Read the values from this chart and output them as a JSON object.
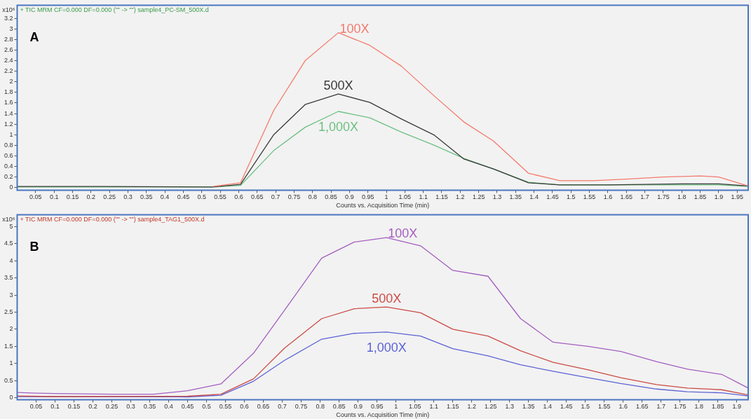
{
  "chart_data": [
    {
      "type": "line",
      "title": "A",
      "subtitle": "+ TIC MRM CF=0.000 DF=0.000 (\"\" -> \"\") sample4_PC-SM_500X.d",
      "xlabel": "Counts vs. Acquisition Time (min)",
      "ylabel": "x10⁶",
      "xlim": [
        0,
        1.98
      ],
      "ylim": [
        -0.05,
        3.45
      ],
      "xticks": [
        0.05,
        0.1,
        0.15,
        0.2,
        0.25,
        0.3,
        0.35,
        0.4,
        0.45,
        0.5,
        0.55,
        0.6,
        0.65,
        0.7,
        0.75,
        0.8,
        0.85,
        0.9,
        0.95,
        1,
        1.05,
        1.1,
        1.15,
        1.2,
        1.25,
        1.3,
        1.35,
        1.4,
        1.45,
        1.5,
        1.55,
        1.6,
        1.65,
        1.7,
        1.75,
        1.8,
        1.85,
        1.9,
        1.95
      ],
      "yticks": [
        0,
        0.2,
        0.4,
        0.6,
        0.8,
        1,
        1.2,
        1.4,
        1.6,
        1.8,
        2,
        2.2,
        2.4,
        2.6,
        2.8,
        3,
        3.2
      ],
      "legend": false,
      "marker": "none",
      "series": [
        {
          "name": "100X",
          "color": "#f47a6c",
          "x": [
            0.53,
            0.605,
            0.695,
            0.78,
            0.87,
            0.955,
            1.04,
            1.13,
            1.21,
            1.29,
            1.385,
            1.47,
            1.56,
            1.65,
            1.75,
            1.85,
            1.9,
            1.98
          ],
          "values": [
            0.02,
            0.09,
            1.46,
            2.4,
            2.93,
            2.69,
            2.3,
            1.73,
            1.24,
            0.88,
            0.27,
            0.13,
            0.13,
            0.16,
            0.2,
            0.22,
            0.2,
            0.03
          ]
        },
        {
          "name": "500X",
          "color": "#3a3a3a",
          "x": [
            0,
            0.22,
            0.53,
            0.605,
            0.695,
            0.78,
            0.87,
            0.955,
            1.04,
            1.13,
            1.21,
            1.29,
            1.385,
            1.47,
            1.6,
            1.8,
            1.9,
            1.98
          ],
          "values": [
            0.02,
            0.02,
            0.01,
            0.06,
            1.0,
            1.57,
            1.77,
            1.61,
            1.3,
            0.99,
            0.54,
            0.35,
            0.09,
            0.05,
            0.05,
            0.07,
            0.07,
            0.03
          ]
        },
        {
          "name": "1,000X",
          "color": "#6cc082",
          "x": [
            0,
            0.22,
            0.53,
            0.605,
            0.695,
            0.78,
            0.87,
            0.955,
            1.04,
            1.13,
            1.21,
            1.29,
            1.385,
            1.47,
            1.6,
            1.8,
            1.9,
            1.98
          ],
          "values": [
            0.01,
            0.01,
            0.01,
            0.04,
            0.7,
            1.14,
            1.44,
            1.32,
            1.05,
            0.8,
            0.55,
            0.35,
            0.1,
            0.05,
            0.05,
            0.05,
            0.05,
            0.02
          ]
        }
      ]
    },
    {
      "type": "line",
      "title": "B",
      "subtitle": "+ TIC MRM CF=0.000 DF=0.000 (\"\" -> \"\") sample4_TAG1_500X.d",
      "xlabel": "Counts vs. Acquisition Time (min)",
      "ylabel": "x10⁶",
      "xlim": [
        0,
        1.93
      ],
      "ylim": [
        -0.06,
        5.35
      ],
      "xticks": [
        0.05,
        0.1,
        0.15,
        0.2,
        0.25,
        0.3,
        0.35,
        0.4,
        0.45,
        0.5,
        0.55,
        0.6,
        0.65,
        0.7,
        0.75,
        0.8,
        0.85,
        0.9,
        0.95,
        1,
        1.05,
        1.1,
        1.15,
        1.2,
        1.25,
        1.3,
        1.35,
        1.4,
        1.45,
        1.5,
        1.55,
        1.6,
        1.65,
        1.7,
        1.75,
        1.8,
        1.85,
        1.9
      ],
      "yticks": [
        0,
        0.5,
        1,
        1.5,
        2,
        2.5,
        3,
        3.5,
        4,
        4.5,
        5
      ],
      "legend": false,
      "marker": "none",
      "series": [
        {
          "name": "100X",
          "color": "#a35fbf",
          "x": [
            0,
            0.05,
            0.1,
            0.25,
            0.36,
            0.45,
            0.538,
            0.624,
            0.706,
            0.804,
            0.89,
            0.975,
            1.065,
            1.15,
            1.243,
            1.329,
            1.415,
            1.508,
            1.594,
            1.688,
            1.77,
            1.86,
            1.93
          ],
          "values": [
            0.15,
            0.13,
            0.12,
            0.1,
            0.1,
            0.2,
            0.4,
            1.3,
            2.56,
            4.08,
            4.55,
            4.68,
            4.44,
            3.72,
            3.55,
            2.31,
            1.62,
            1.5,
            1.35,
            1.05,
            0.83,
            0.68,
            0.28
          ]
        },
        {
          "name": "500X",
          "color": "#cc4b44",
          "x": [
            0,
            0.1,
            0.45,
            0.538,
            0.624,
            0.706,
            0.804,
            0.89,
            0.975,
            1.065,
            1.15,
            1.243,
            1.329,
            1.415,
            1.508,
            1.594,
            1.688,
            1.77,
            1.86,
            1.93
          ],
          "values": [
            0.05,
            0.03,
            0.04,
            0.1,
            0.55,
            1.45,
            2.31,
            2.6,
            2.65,
            2.48,
            2.0,
            1.8,
            1.37,
            1.03,
            0.81,
            0.58,
            0.38,
            0.28,
            0.23,
            0.08
          ]
        },
        {
          "name": "1,000X",
          "color": "#5c62d6",
          "x": [
            0,
            0.45,
            0.538,
            0.624,
            0.706,
            0.804,
            0.89,
            0.975,
            1.065,
            1.15,
            1.243,
            1.329,
            1.415,
            1.508,
            1.594,
            1.688,
            1.77,
            1.86,
            1.93
          ],
          "values": [
            0.03,
            0.02,
            0.07,
            0.48,
            1.09,
            1.71,
            1.88,
            1.92,
            1.8,
            1.43,
            1.22,
            0.96,
            0.77,
            0.58,
            0.41,
            0.25,
            0.17,
            0.14,
            0.05
          ]
        }
      ]
    }
  ]
}
